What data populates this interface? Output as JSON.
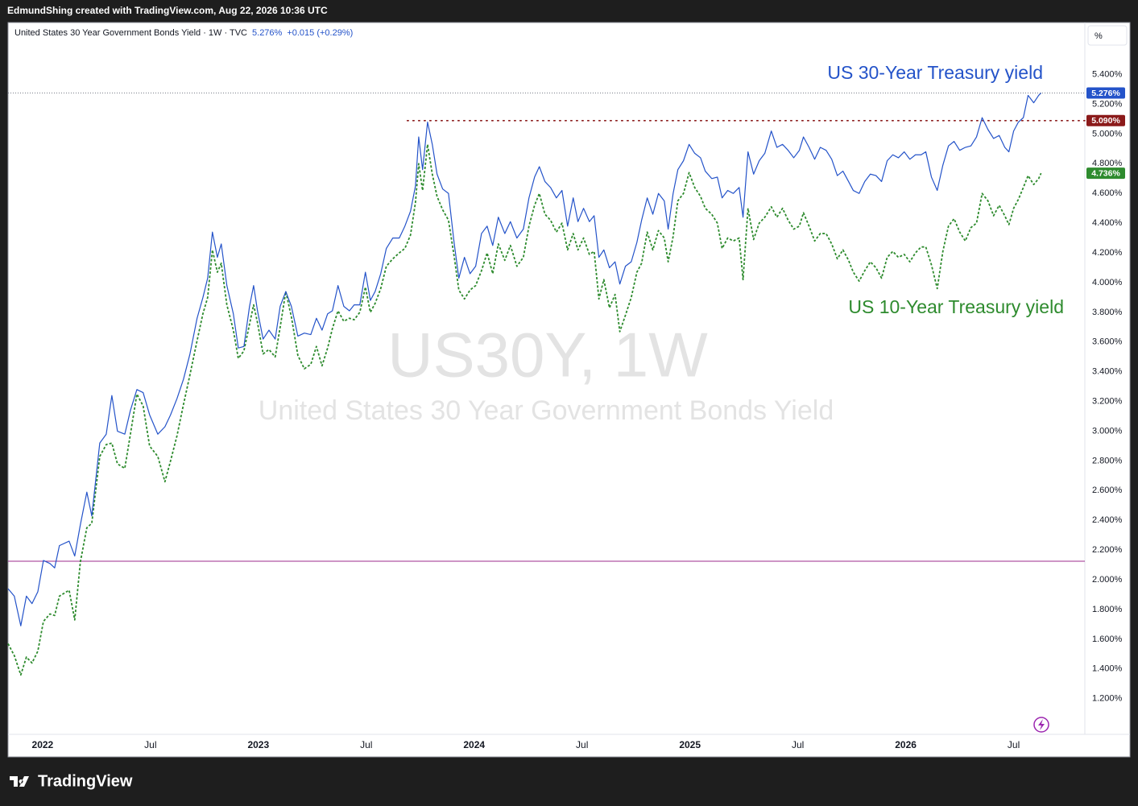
{
  "header": {
    "credit": "EdmundShing created with TradingView.com, Aug 22, 2026 10:36 UTC"
  },
  "footer": {
    "brand": "TradingView"
  },
  "chart_data": {
    "type": "line",
    "legend": {
      "symbol": "United States 30 Year Government Bonds Yield · 1W · TVC",
      "last": "5.276%",
      "change": "+0.015 (+0.29%)"
    },
    "unit_button": "%",
    "watermark": {
      "line1": "US30Y, 1W",
      "line2": "United States 30 Year Government Bonds Yield"
    },
    "grid": false,
    "xlim": [
      2021.84,
      2026.83
    ],
    "ylim": [
      0.96,
      5.75
    ],
    "xticks": [
      2022,
      {
        "value": 2022.5,
        "label": "Jul"
      },
      2023,
      {
        "value": 2023.5,
        "label": "Jul"
      },
      2024,
      {
        "value": 2024.5,
        "label": "Jul"
      },
      2025,
      {
        "value": 2025.5,
        "label": "Jul"
      },
      2026,
      {
        "value": 2026.5,
        "label": "Jul"
      }
    ],
    "yticks": [
      {
        "value": 1.2,
        "label": "1.200%"
      },
      {
        "value": 1.4,
        "label": "1.400%"
      },
      {
        "value": 1.6,
        "label": "1.600%"
      },
      {
        "value": 1.8,
        "label": "1.800%"
      },
      {
        "value": 2.0,
        "label": "2.000%"
      },
      {
        "value": 2.2,
        "label": "2.200%"
      },
      {
        "value": 2.4,
        "label": "2.400%"
      },
      {
        "value": 2.6,
        "label": "2.600%"
      },
      {
        "value": 2.8,
        "label": "2.800%"
      },
      {
        "value": 3.0,
        "label": "3.000%"
      },
      {
        "value": 3.2,
        "label": "3.200%"
      },
      {
        "value": 3.4,
        "label": "3.400%"
      },
      {
        "value": 3.6,
        "label": "3.600%"
      },
      {
        "value": 3.8,
        "label": "3.800%"
      },
      {
        "value": 4.0,
        "label": "4.000%"
      },
      {
        "value": 4.2,
        "label": "4.200%"
      },
      {
        "value": 4.4,
        "label": "4.400%"
      },
      {
        "value": 4.6,
        "label": "4.600%"
      },
      {
        "value": 4.8,
        "label": "4.800%"
      },
      {
        "value": 5.0,
        "label": "5.000%"
      },
      {
        "value": 5.2,
        "label": "5.200%"
      },
      {
        "value": 5.4,
        "label": "5.400%"
      }
    ],
    "x": [
      2021.84,
      2021.869,
      2021.899,
      2021.925,
      2021.951,
      2021.978,
      2022.004,
      2022.034,
      2022.056,
      2022.078,
      2022.123,
      2022.149,
      2022.175,
      2022.205,
      2022.228,
      2022.265,
      2022.295,
      2022.321,
      2022.347,
      2022.381,
      2022.407,
      2022.437,
      2022.466,
      2022.496,
      2022.534,
      2022.567,
      2022.593,
      2022.623,
      2022.653,
      2022.683,
      2022.716,
      2022.743,
      2022.765,
      2022.787,
      2022.81,
      2022.828,
      2022.854,
      2022.884,
      2022.907,
      2022.933,
      2022.959,
      2022.978,
      2022.996,
      2023.022,
      2023.049,
      2023.078,
      2023.101,
      2023.127,
      2023.153,
      2023.183,
      2023.213,
      2023.243,
      2023.269,
      2023.295,
      2023.321,
      2023.343,
      2023.369,
      2023.396,
      2023.422,
      2023.444,
      2023.47,
      2023.496,
      2023.519,
      2023.541,
      2023.567,
      2023.593,
      2023.623,
      2023.653,
      2023.679,
      2023.705,
      2023.728,
      2023.743,
      2023.761,
      2023.784,
      2023.806,
      2023.828,
      2023.854,
      2023.881,
      2023.907,
      2023.929,
      2023.955,
      2023.981,
      2024.007,
      2024.034,
      2024.06,
      2024.086,
      2024.112,
      2024.142,
      2024.168,
      2024.198,
      2024.228,
      2024.254,
      2024.28,
      2024.302,
      2024.328,
      2024.354,
      2024.381,
      2024.407,
      2024.433,
      2024.459,
      2024.481,
      2024.507,
      2024.534,
      2024.556,
      2024.578,
      2024.601,
      2024.627,
      2024.653,
      2024.675,
      2024.701,
      2024.728,
      2024.754,
      2024.776,
      2024.802,
      2024.828,
      2024.854,
      2024.881,
      2024.899,
      2024.922,
      2024.944,
      2024.97,
      2024.996,
      2025.022,
      2025.049,
      2025.071,
      2025.101,
      2025.127,
      2025.149,
      2025.175,
      2025.201,
      2025.228,
      2025.246,
      2025.269,
      2025.295,
      2025.321,
      2025.347,
      2025.377,
      2025.403,
      2025.429,
      2025.455,
      2025.481,
      2025.507,
      2025.526,
      2025.552,
      2025.578,
      2025.604,
      2025.631,
      2025.657,
      2025.683,
      2025.709,
      2025.735,
      2025.757,
      2025.784,
      2025.81,
      2025.836,
      2025.862,
      2025.888,
      2025.914,
      2025.94,
      2025.966,
      2025.993,
      2026.019,
      2026.045,
      2026.071,
      2026.093,
      2026.119,
      2026.146,
      2026.172,
      2026.198,
      2026.224,
      2026.25,
      2026.276,
      2026.302,
      2026.328,
      2026.354,
      2026.381,
      2026.407,
      2026.433,
      2026.459,
      2026.478,
      2026.5,
      2026.522,
      2026.545,
      2026.567,
      2026.593,
      2026.616,
      2026.627
    ],
    "series": [
      {
        "name": "US 30-Year Treasury yield",
        "color": "#2453c9",
        "style": "solid",
        "last_label": "5.276%",
        "price_line": true,
        "values": [
          1.94,
          1.89,
          1.69,
          1.89,
          1.84,
          1.92,
          2.13,
          2.11,
          2.08,
          2.23,
          2.26,
          2.16,
          2.37,
          2.59,
          2.43,
          2.92,
          2.98,
          3.24,
          3.0,
          2.98,
          3.14,
          3.28,
          3.26,
          3.11,
          2.98,
          3.03,
          3.11,
          3.22,
          3.35,
          3.52,
          3.76,
          3.9,
          4.03,
          4.34,
          4.17,
          4.26,
          3.98,
          3.79,
          3.56,
          3.57,
          3.84,
          3.98,
          3.81,
          3.62,
          3.68,
          3.62,
          3.84,
          3.94,
          3.84,
          3.64,
          3.66,
          3.65,
          3.76,
          3.68,
          3.79,
          3.81,
          3.98,
          3.84,
          3.81,
          3.85,
          3.85,
          4.07,
          3.88,
          3.94,
          4.06,
          4.23,
          4.3,
          4.3,
          4.38,
          4.48,
          4.65,
          4.98,
          4.76,
          5.08,
          4.93,
          4.73,
          4.63,
          4.6,
          4.27,
          4.03,
          4.17,
          4.06,
          4.11,
          4.33,
          4.38,
          4.25,
          4.44,
          4.33,
          4.41,
          4.3,
          4.36,
          4.57,
          4.71,
          4.78,
          4.68,
          4.64,
          4.57,
          4.62,
          4.38,
          4.57,
          4.41,
          4.5,
          4.41,
          4.45,
          4.17,
          4.22,
          4.1,
          4.14,
          3.99,
          4.11,
          4.14,
          4.27,
          4.42,
          4.57,
          4.46,
          4.6,
          4.55,
          4.36,
          4.6,
          4.76,
          4.82,
          4.93,
          4.87,
          4.84,
          4.75,
          4.7,
          4.71,
          4.57,
          4.62,
          4.6,
          4.64,
          4.44,
          4.88,
          4.73,
          4.82,
          4.87,
          5.02,
          4.91,
          4.93,
          4.89,
          4.84,
          4.89,
          4.98,
          4.91,
          4.83,
          4.91,
          4.89,
          4.83,
          4.72,
          4.75,
          4.68,
          4.62,
          4.6,
          4.68,
          4.73,
          4.72,
          4.68,
          4.82,
          4.86,
          4.84,
          4.88,
          4.83,
          4.86,
          4.86,
          4.88,
          4.71,
          4.62,
          4.79,
          4.92,
          4.95,
          4.89,
          4.91,
          4.92,
          4.98,
          5.11,
          5.03,
          4.97,
          4.99,
          4.91,
          4.88,
          5.02,
          5.08,
          5.11,
          5.26,
          5.21,
          5.26,
          5.276
        ]
      },
      {
        "name": "US 10-Year Treasury yield",
        "color": "#2e8b2e",
        "style": "dashed",
        "last_label": "4.736%",
        "price_line": false,
        "values": [
          1.57,
          1.49,
          1.36,
          1.48,
          1.44,
          1.52,
          1.72,
          1.77,
          1.76,
          1.89,
          1.93,
          1.73,
          2.12,
          2.35,
          2.38,
          2.83,
          2.91,
          2.92,
          2.78,
          2.75,
          2.98,
          3.25,
          3.17,
          2.9,
          2.83,
          2.66,
          2.8,
          2.97,
          3.18,
          3.38,
          3.61,
          3.79,
          3.9,
          4.22,
          4.07,
          4.13,
          3.85,
          3.68,
          3.49,
          3.54,
          3.72,
          3.85,
          3.73,
          3.52,
          3.55,
          3.5,
          3.7,
          3.94,
          3.77,
          3.51,
          3.42,
          3.45,
          3.57,
          3.44,
          3.56,
          3.69,
          3.81,
          3.74,
          3.76,
          3.75,
          3.8,
          3.97,
          3.8,
          3.86,
          3.96,
          4.11,
          4.16,
          4.2,
          4.23,
          4.32,
          4.54,
          4.8,
          4.62,
          4.93,
          4.73,
          4.58,
          4.49,
          4.42,
          4.18,
          3.95,
          3.89,
          3.95,
          3.98,
          4.08,
          4.2,
          4.06,
          4.26,
          4.15,
          4.25,
          4.11,
          4.17,
          4.38,
          4.52,
          4.6,
          4.46,
          4.42,
          4.34,
          4.4,
          4.22,
          4.33,
          4.22,
          4.3,
          4.19,
          4.21,
          3.89,
          4.02,
          3.83,
          3.92,
          3.67,
          3.78,
          3.9,
          4.07,
          4.13,
          4.34,
          4.22,
          4.35,
          4.3,
          4.14,
          4.31,
          4.55,
          4.6,
          4.74,
          4.64,
          4.58,
          4.5,
          4.46,
          4.4,
          4.23,
          4.3,
          4.28,
          4.3,
          4.02,
          4.5,
          4.29,
          4.4,
          4.44,
          4.51,
          4.44,
          4.5,
          4.42,
          4.36,
          4.38,
          4.47,
          4.38,
          4.28,
          4.33,
          4.33,
          4.26,
          4.16,
          4.22,
          4.15,
          4.07,
          4.01,
          4.08,
          4.14,
          4.1,
          4.03,
          4.17,
          4.21,
          4.17,
          4.19,
          4.14,
          4.2,
          4.24,
          4.24,
          4.12,
          3.96,
          4.21,
          4.38,
          4.43,
          4.34,
          4.28,
          4.37,
          4.4,
          4.6,
          4.55,
          4.45,
          4.52,
          4.45,
          4.39,
          4.5,
          4.56,
          4.64,
          4.72,
          4.66,
          4.7,
          4.736
        ]
      }
    ],
    "hlines": [
      {
        "value": 5.09,
        "label": "5.090%",
        "color": "#8b1a1a",
        "style": "dotted",
        "x_start": 2023.69
      },
      {
        "value": 2.125,
        "color": "#9c2b8c",
        "style": "solid"
      }
    ]
  }
}
